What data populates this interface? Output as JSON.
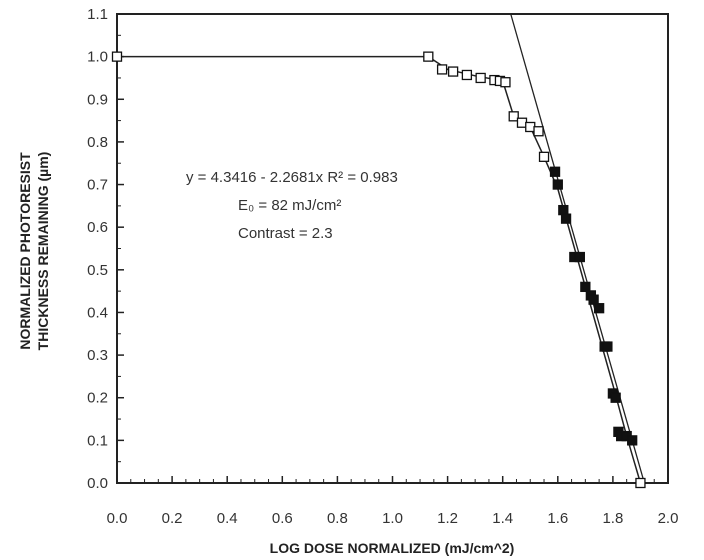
{
  "chart_data": {
    "type": "scatter",
    "title": "",
    "xlabel": "LOG DOSE NORMALIZED (mJ/cm^2)",
    "ylabel_lines": [
      "NORMALIZED PHOTORESIST",
      "THICKNESS REMAINING (µm)"
    ],
    "xlim": [
      0.0,
      2.0
    ],
    "ylim": [
      0.0,
      1.1
    ],
    "x_ticks": [
      "0.0",
      "0.2",
      "0.4",
      "0.6",
      "0.8",
      "1.0",
      "1.2",
      "1.4",
      "1.6",
      "1.8",
      "2.0"
    ],
    "y_ticks": [
      "0.0",
      "0.1",
      "0.2",
      "0.3",
      "0.4",
      "0.5",
      "0.6",
      "0.7",
      "0.8",
      "0.9",
      "1.0",
      "1.1"
    ],
    "grid": false,
    "series": [
      {
        "marker": "open-square",
        "x": [
          0.0,
          1.13,
          1.18,
          1.22,
          1.27,
          1.32,
          1.37,
          1.39,
          1.41,
          1.44,
          1.47,
          1.5,
          1.53,
          1.55
        ],
        "y": [
          1.0,
          1.0,
          0.97,
          0.965,
          0.957,
          0.95,
          0.945,
          0.943,
          0.94,
          0.86,
          0.845,
          0.835,
          0.825,
          0.765
        ]
      },
      {
        "marker": "filled-square",
        "x": [
          1.59,
          1.6,
          1.62,
          1.63,
          1.66,
          1.68,
          1.7,
          1.72,
          1.73,
          1.75,
          1.77,
          1.78,
          1.8,
          1.81,
          1.82,
          1.83,
          1.85,
          1.87
        ],
        "y": [
          0.73,
          0.7,
          0.64,
          0.62,
          0.53,
          0.53,
          0.46,
          0.44,
          0.43,
          0.41,
          0.32,
          0.32,
          0.21,
          0.2,
          0.12,
          0.11,
          0.11,
          0.1
        ]
      },
      {
        "marker": "open-square",
        "x": [
          1.9
        ],
        "y": [
          0.0
        ]
      }
    ],
    "curve": {
      "x": [
        0.0,
        1.13,
        1.2,
        1.3,
        1.4,
        1.44,
        1.5,
        1.55,
        1.6,
        1.7,
        1.8,
        1.85,
        1.9
      ],
      "y": [
        1.0,
        1.0,
        0.97,
        0.955,
        0.943,
        0.86,
        0.835,
        0.765,
        0.69,
        0.46,
        0.23,
        0.11,
        0.0
      ]
    },
    "fit_line": {
      "intercept": 4.3416,
      "slope": -2.2681,
      "upper_baseline": 1.1
    },
    "annotations": [
      "y = 4.3416 - 2.2681x  R² = 0.983",
      "E₀ = 82 mJ/cm²",
      "Contrast = 2.3"
    ]
  }
}
